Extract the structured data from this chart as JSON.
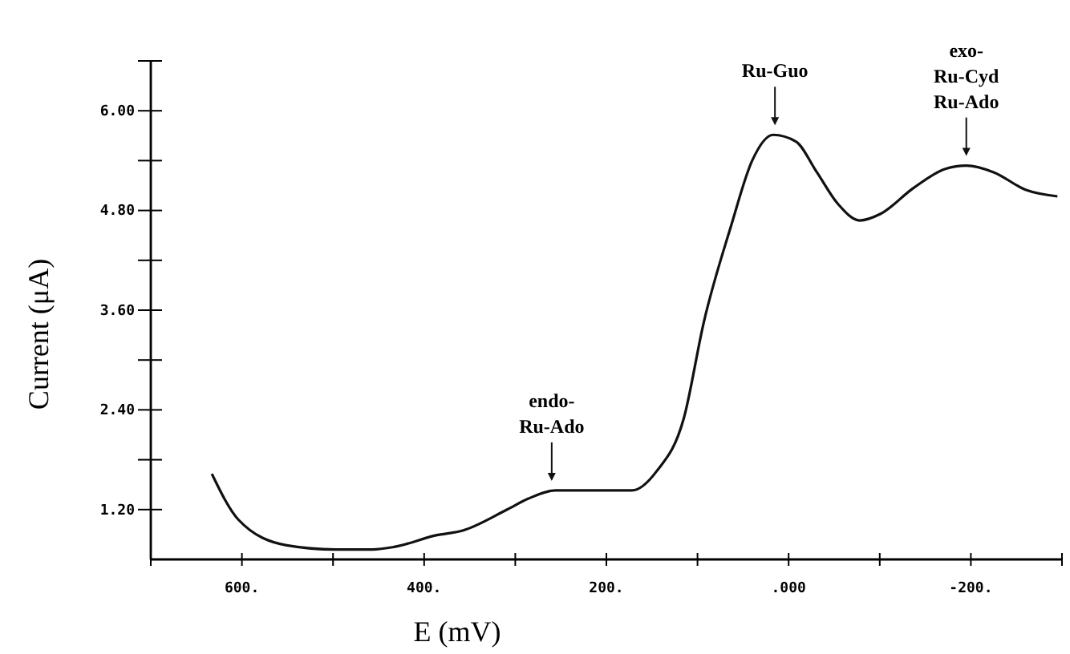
{
  "chart_data": {
    "type": "line",
    "xlabel": "E (mV)",
    "ylabel": "Current (μA)",
    "xlim": [
      700,
      -300
    ],
    "ylim": [
      0.6,
      6.6
    ],
    "xticks": [
      {
        "value": 700,
        "label": null
      },
      {
        "value": 600,
        "label": "600."
      },
      {
        "value": 500,
        "label": null
      },
      {
        "value": 400,
        "label": "400."
      },
      {
        "value": 300,
        "label": null
      },
      {
        "value": 200,
        "label": "200."
      },
      {
        "value": 100,
        "label": null
      },
      {
        "value": 0,
        "label": ".000"
      },
      {
        "value": -100,
        "label": null
      },
      {
        "value": -200,
        "label": "-200."
      },
      {
        "value": -300,
        "label": null
      }
    ],
    "yticks": [
      {
        "value": 1.2,
        "label": "1.20"
      },
      {
        "value": 1.8,
        "label": null
      },
      {
        "value": 2.4,
        "label": "2.40"
      },
      {
        "value": 3.0,
        "label": null
      },
      {
        "value": 3.6,
        "label": "3.60"
      },
      {
        "value": 4.2,
        "label": null
      },
      {
        "value": 4.8,
        "label": "4.80"
      },
      {
        "value": 5.4,
        "label": null
      },
      {
        "value": 6.0,
        "label": "6.00"
      },
      {
        "value": 6.6,
        "label": null
      }
    ],
    "grid": false,
    "line_style": "solid",
    "marker": "none",
    "series": [
      {
        "color": "#111111",
        "x": [
          633,
          604,
          551,
          498,
          457,
          433,
          387,
          357,
          309,
          286,
          256,
          228,
          172,
          145,
          115,
          93,
          63,
          40,
          17,
          -8,
          -31,
          -54,
          -78,
          -101,
          -137,
          -172,
          -195,
          -225,
          -260,
          -295
        ],
        "values": [
          1.63,
          1.08,
          0.77,
          0.72,
          0.72,
          0.75,
          0.89,
          0.95,
          1.2,
          1.33,
          1.43,
          1.43,
          1.43,
          1.66,
          2.3,
          3.46,
          4.62,
          5.4,
          5.71,
          5.63,
          5.26,
          4.88,
          4.68,
          4.76,
          5.07,
          5.3,
          5.34,
          5.26,
          5.05,
          4.97
        ]
      }
    ],
    "annotations": [
      {
        "text": "endo-\nRu-Ado",
        "x": 260,
        "y": 1.43
      },
      {
        "text": "Ru-Guo",
        "x": 15,
        "y": 5.71
      },
      {
        "text": "exo-\nRu-Cyd\nRu-Ado",
        "x": -195,
        "y": 5.34
      }
    ]
  }
}
